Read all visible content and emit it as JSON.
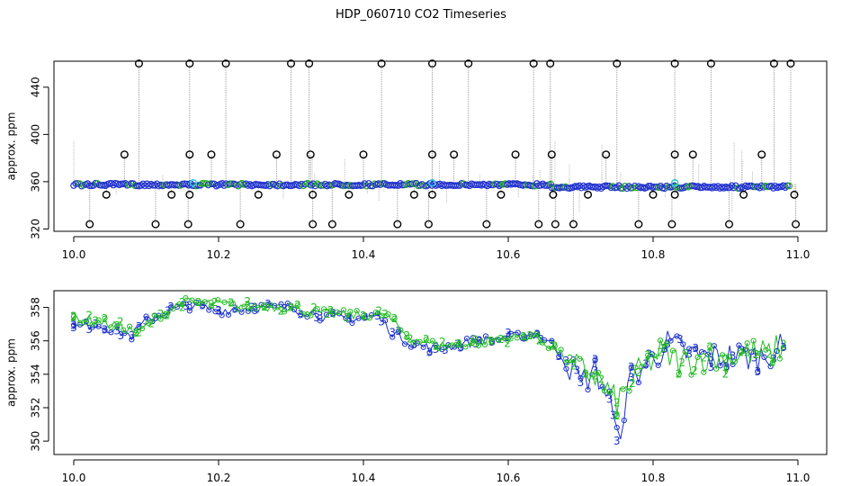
{
  "title": "HDP_060710  CO2 Timeseries",
  "chart_data": [
    {
      "type": "scatter",
      "ylabel": "approx. ppm",
      "xlim": [
        10.0,
        11.0
      ],
      "ylim": [
        318,
        462
      ],
      "xticks": [
        "10.0",
        "10.2",
        "10.4",
        "10.6",
        "10.8",
        "11.0"
      ],
      "yticks": [
        "320",
        "360",
        "400",
        "440"
      ],
      "baseline_segments": [
        {
          "x": [
            10.0,
            10.66
          ],
          "y": [
            357.5,
            357.5
          ]
        },
        {
          "x": [
            10.66,
            10.99
          ],
          "y": [
            355.5,
            355.5
          ]
        }
      ],
      "flagged_points": [
        {
          "x": 10.09,
          "y": 460
        },
        {
          "x": 10.16,
          "y": 460
        },
        {
          "x": 10.21,
          "y": 460
        },
        {
          "x": 10.3,
          "y": 460
        },
        {
          "x": 10.325,
          "y": 460
        },
        {
          "x": 10.425,
          "y": 460
        },
        {
          "x": 10.495,
          "y": 460
        },
        {
          "x": 10.545,
          "y": 460
        },
        {
          "x": 10.635,
          "y": 460
        },
        {
          "x": 10.658,
          "y": 460
        },
        {
          "x": 10.75,
          "y": 460
        },
        {
          "x": 10.83,
          "y": 460
        },
        {
          "x": 10.88,
          "y": 460
        },
        {
          "x": 10.967,
          "y": 460
        },
        {
          "x": 10.99,
          "y": 460
        },
        {
          "x": 10.07,
          "y": 383
        },
        {
          "x": 10.16,
          "y": 383
        },
        {
          "x": 10.19,
          "y": 383
        },
        {
          "x": 10.28,
          "y": 383
        },
        {
          "x": 10.327,
          "y": 383
        },
        {
          "x": 10.4,
          "y": 383
        },
        {
          "x": 10.495,
          "y": 383
        },
        {
          "x": 10.525,
          "y": 383
        },
        {
          "x": 10.61,
          "y": 383
        },
        {
          "x": 10.66,
          "y": 383
        },
        {
          "x": 10.735,
          "y": 383
        },
        {
          "x": 10.83,
          "y": 383
        },
        {
          "x": 10.855,
          "y": 383
        },
        {
          "x": 10.95,
          "y": 383
        },
        {
          "x": 10.045,
          "y": 349
        },
        {
          "x": 10.135,
          "y": 349
        },
        {
          "x": 10.16,
          "y": 349
        },
        {
          "x": 10.255,
          "y": 349
        },
        {
          "x": 10.33,
          "y": 349
        },
        {
          "x": 10.38,
          "y": 349
        },
        {
          "x": 10.47,
          "y": 349
        },
        {
          "x": 10.495,
          "y": 349
        },
        {
          "x": 10.59,
          "y": 349
        },
        {
          "x": 10.662,
          "y": 349
        },
        {
          "x": 10.71,
          "y": 349
        },
        {
          "x": 10.8,
          "y": 349
        },
        {
          "x": 10.83,
          "y": 349
        },
        {
          "x": 10.925,
          "y": 349
        },
        {
          "x": 10.995,
          "y": 349
        },
        {
          "x": 10.022,
          "y": 324
        },
        {
          "x": 10.113,
          "y": 324
        },
        {
          "x": 10.158,
          "y": 324
        },
        {
          "x": 10.23,
          "y": 324
        },
        {
          "x": 10.33,
          "y": 324
        },
        {
          "x": 10.357,
          "y": 324
        },
        {
          "x": 10.447,
          "y": 324
        },
        {
          "x": 10.49,
          "y": 324
        },
        {
          "x": 10.57,
          "y": 324
        },
        {
          "x": 10.642,
          "y": 324
        },
        {
          "x": 10.665,
          "y": 324
        },
        {
          "x": 10.69,
          "y": 324
        },
        {
          "x": 10.78,
          "y": 324
        },
        {
          "x": 10.826,
          "y": 324
        },
        {
          "x": 10.905,
          "y": 324
        },
        {
          "x": 10.997,
          "y": 324
        }
      ]
    },
    {
      "type": "line",
      "ylabel": "approx. ppm",
      "xlim": [
        10.0,
        11.0
      ],
      "ylim": [
        349.2,
        359.0
      ],
      "xticks": [
        "10.0",
        "10.2",
        "10.4",
        "10.6",
        "10.8",
        "11.0"
      ],
      "yticks": [
        "350",
        "352",
        "354",
        "356",
        "358"
      ],
      "series": [
        {
          "marker": "3",
          "x": [
            10.0,
            10.03,
            10.06,
            10.08,
            10.1,
            10.13,
            10.16,
            10.2,
            10.25,
            10.3,
            10.34,
            10.38,
            10.42,
            10.44,
            10.47,
            10.5,
            10.53,
            10.56,
            10.6,
            10.64,
            10.66,
            10.68,
            10.7,
            10.72,
            10.74,
            10.75,
            10.77,
            10.79,
            10.82,
            10.85,
            10.88,
            10.91,
            10.94,
            10.98
          ],
          "y": [
            356.8,
            357.0,
            356.6,
            356.3,
            357.2,
            357.8,
            358.1,
            357.8,
            358.0,
            358.0,
            357.5,
            357.3,
            357.5,
            356.5,
            355.8,
            355.5,
            355.8,
            356.0,
            356.2,
            356.4,
            355.8,
            354.8,
            353.5,
            354.2,
            352.5,
            350.0,
            353.8,
            354.6,
            355.8,
            355.2,
            355.0,
            355.1,
            355.0,
            355.6
          ]
        },
        {
          "marker": "2",
          "x": [
            10.0,
            10.03,
            10.06,
            10.09,
            10.12,
            10.15,
            10.19,
            10.24,
            10.3,
            10.35,
            10.4,
            10.43,
            10.46,
            10.5,
            10.55,
            10.59,
            10.63,
            10.66,
            10.69,
            10.72,
            10.75,
            10.78,
            10.81,
            10.84,
            10.87,
            10.9,
            10.93,
            10.96,
            10.98
          ],
          "y": [
            357.4,
            357.2,
            356.9,
            356.5,
            357.6,
            358.3,
            358.2,
            358.1,
            358.0,
            357.6,
            357.5,
            357.6,
            356.3,
            355.7,
            355.9,
            356.1,
            356.3,
            355.7,
            354.5,
            353.9,
            352.3,
            354.1,
            355.3,
            354.7,
            355.0,
            354.9,
            355.3,
            355.2,
            355.8
          ]
        }
      ]
    }
  ]
}
